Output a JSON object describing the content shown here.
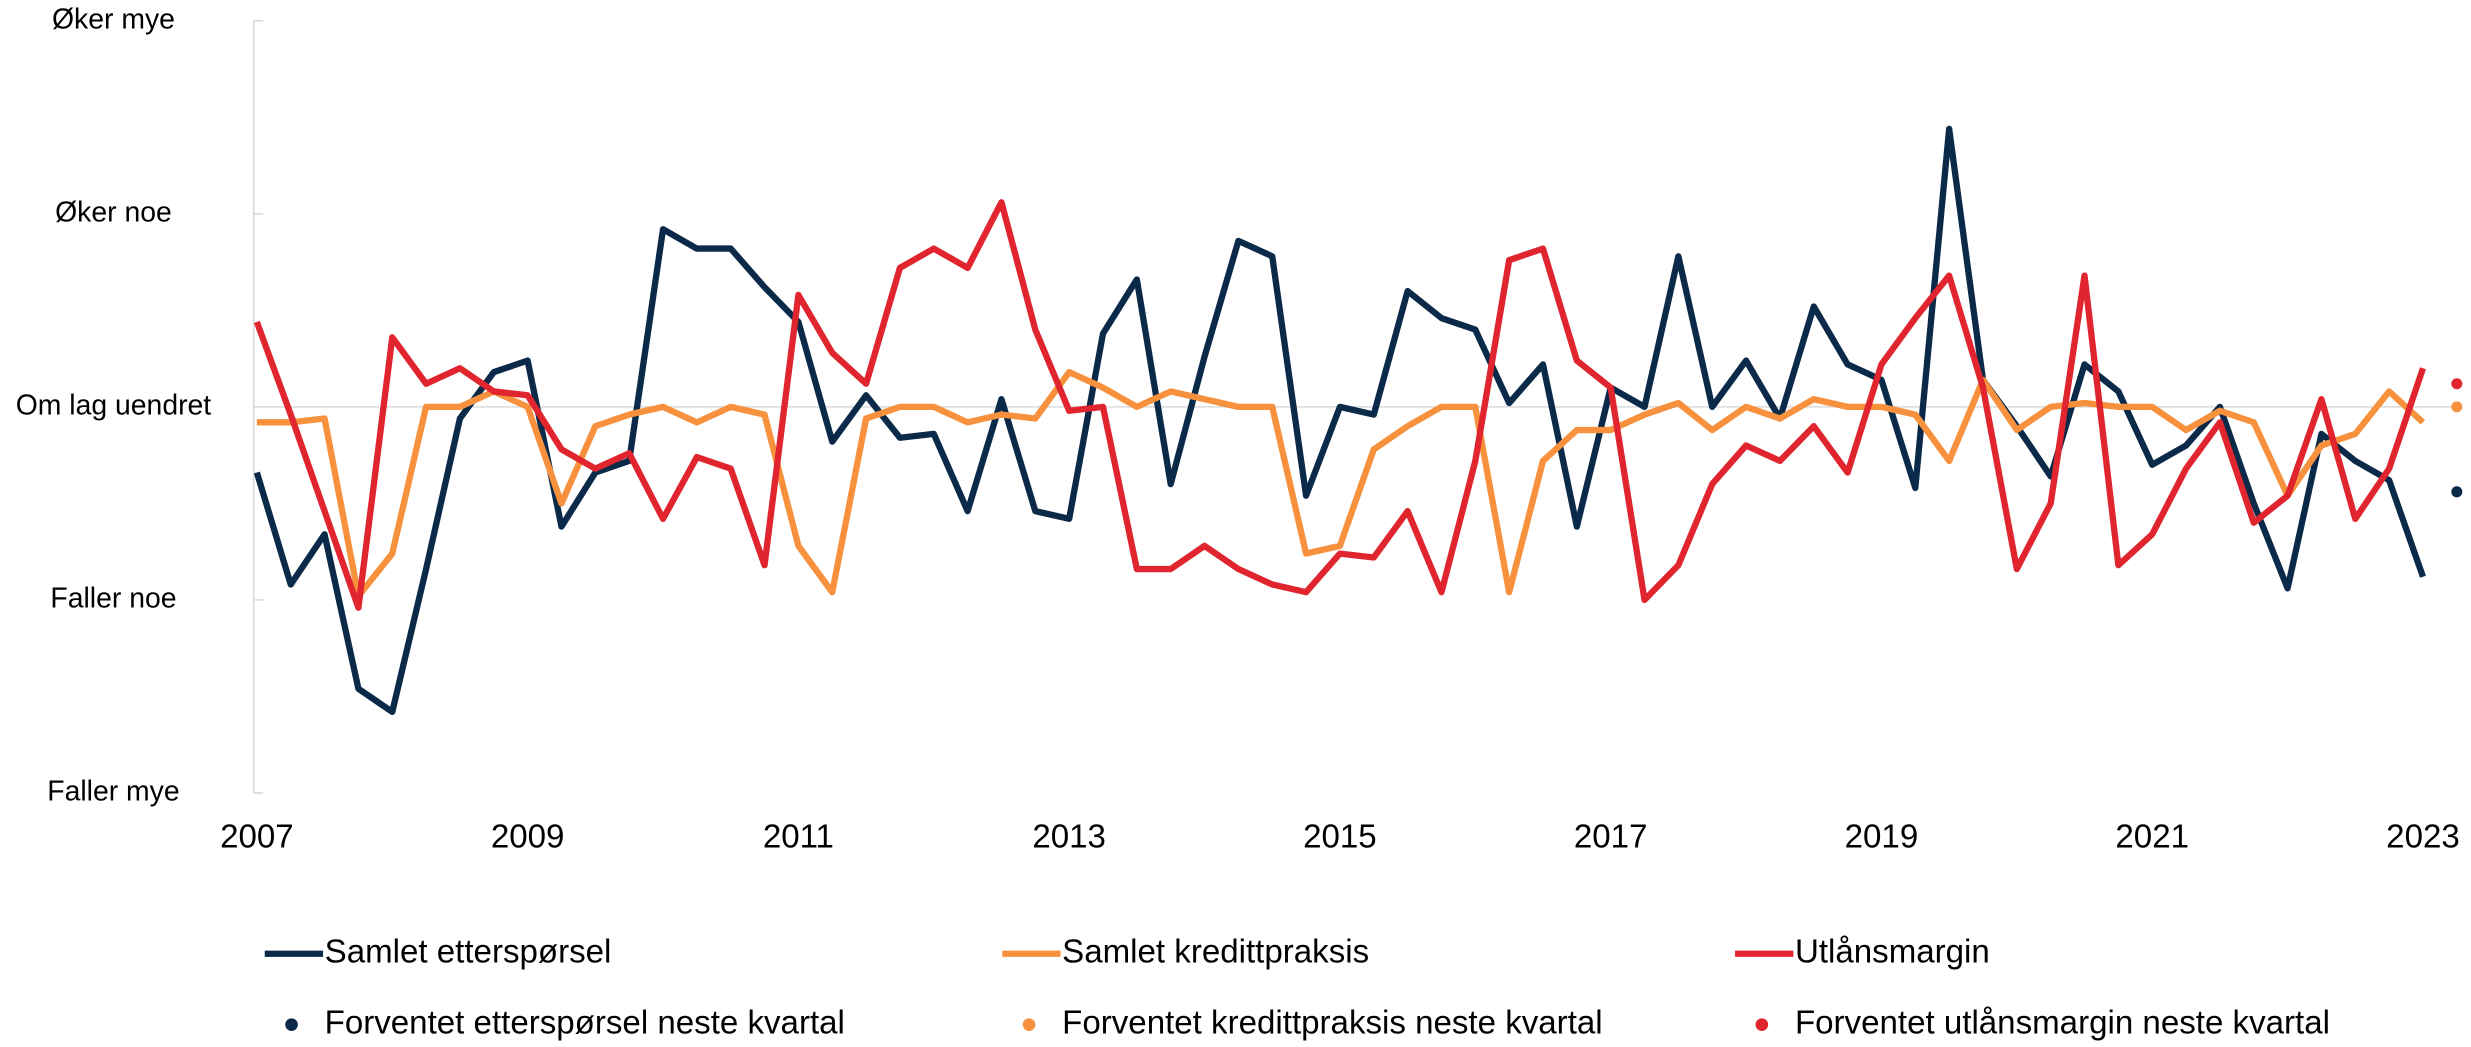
{
  "chart_data": {
    "type": "line",
    "x": [
      2007,
      2007.25,
      2007.5,
      2007.75,
      2008,
      2008.25,
      2008.5,
      2008.75,
      2009,
      2009.25,
      2009.5,
      2009.75,
      2010,
      2010.25,
      2010.5,
      2010.75,
      2011,
      2011.25,
      2011.5,
      2011.75,
      2012,
      2012.25,
      2012.5,
      2012.75,
      2013,
      2013.25,
      2013.5,
      2013.75,
      2014,
      2014.25,
      2014.5,
      2014.75,
      2015,
      2015.25,
      2015.5,
      2015.75,
      2016,
      2016.25,
      2016.5,
      2016.75,
      2017,
      2017.25,
      2017.5,
      2017.75,
      2018,
      2018.25,
      2018.5,
      2018.75,
      2019,
      2019.25,
      2019.5,
      2019.75,
      2020,
      2020.25,
      2020.5,
      2020.75,
      2021,
      2021.25,
      2021.5,
      2021.75,
      2022,
      2022.25,
      2022.5,
      2022.75,
      2023
    ],
    "series": [
      {
        "name": "Samlet etterspørsel",
        "color": "#0b2a4a",
        "values": [
          -17,
          -46,
          -33,
          -73,
          -79,
          -42,
          -3,
          9,
          12,
          -31,
          -17,
          -14,
          46,
          41,
          41,
          31,
          22,
          -9,
          3,
          -8,
          -7,
          -27,
          2,
          -27,
          -29,
          19,
          33,
          -20,
          13,
          43,
          39,
          -23,
          0,
          -2,
          30,
          23,
          20,
          1,
          11,
          -31,
          5,
          0,
          39,
          0,
          12,
          -3,
          26,
          11,
          7,
          -21,
          72,
          7,
          -5,
          -18,
          11,
          4,
          -15,
          -10,
          0,
          -25,
          -47,
          -7,
          -14,
          -19,
          -44
        ]
      },
      {
        "name": "Samlet kredittpraksis",
        "color": "#f7913d",
        "values": [
          -4,
          -4,
          -3,
          -49,
          -38,
          0,
          0,
          4,
          0,
          -25,
          -5,
          -2,
          0,
          -4,
          0,
          -2,
          -36,
          -48,
          -3,
          0,
          0,
          -4,
          -2,
          -3,
          9,
          5,
          0,
          4,
          2,
          0,
          0,
          -38,
          -36,
          -11,
          -5,
          0,
          0,
          -48,
          -14,
          -6,
          -6,
          -2,
          1,
          -6,
          0,
          -3,
          2,
          0,
          0,
          -2,
          -14,
          7,
          -6,
          0,
          1,
          0,
          0,
          -6,
          -1,
          -4,
          -23,
          -10,
          -7,
          4,
          -4
        ]
      },
      {
        "name": "Utlånsmargin",
        "color": "#e0252f",
        "values": [
          22,
          -2,
          -27,
          -52,
          18,
          6,
          10,
          4,
          3,
          -11,
          -16,
          -12,
          -29,
          -13,
          -16,
          -41,
          29,
          14,
          6,
          36,
          41,
          36,
          53,
          20,
          -1,
          0,
          -42,
          -42,
          -36,
          -42,
          -46,
          -48,
          -38,
          -39,
          -27,
          -48,
          -14,
          38,
          41,
          12,
          5,
          -50,
          -41,
          -20,
          -10,
          -14,
          -5,
          -17,
          11,
          23,
          34,
          5,
          -42,
          -25,
          34,
          -41,
          -33,
          -16,
          -4,
          -30,
          -23,
          2,
          -29,
          -16,
          10
        ]
      }
    ],
    "expected_x": 2023.25,
    "expected": [
      {
        "name": "Forventet etterspørsel neste kvartal",
        "color": "#0b2a4a",
        "value": -22
      },
      {
        "name": "Forventet kredittpraksis neste kvartal",
        "color": "#f7913d",
        "value": 0
      },
      {
        "name": "Forventet utlånsmargin neste kvartal",
        "color": "#e0252f",
        "value": 6
      }
    ],
    "xlim": [
      2007,
      2023.25
    ],
    "xticks": [
      2007,
      2009,
      2011,
      2013,
      2015,
      2017,
      2019,
      2021,
      2023
    ],
    "ylim": [
      -100,
      100
    ],
    "yticks": [
      {
        "value": -100,
        "label": "Faller mye"
      },
      {
        "value": -50,
        "label": "Faller noe"
      },
      {
        "value": 0,
        "label": "Om lag uendret"
      },
      {
        "value": 50,
        "label": "Øker noe"
      },
      {
        "value": 100,
        "label": "Øker mye"
      }
    ],
    "legend": "bottom"
  }
}
